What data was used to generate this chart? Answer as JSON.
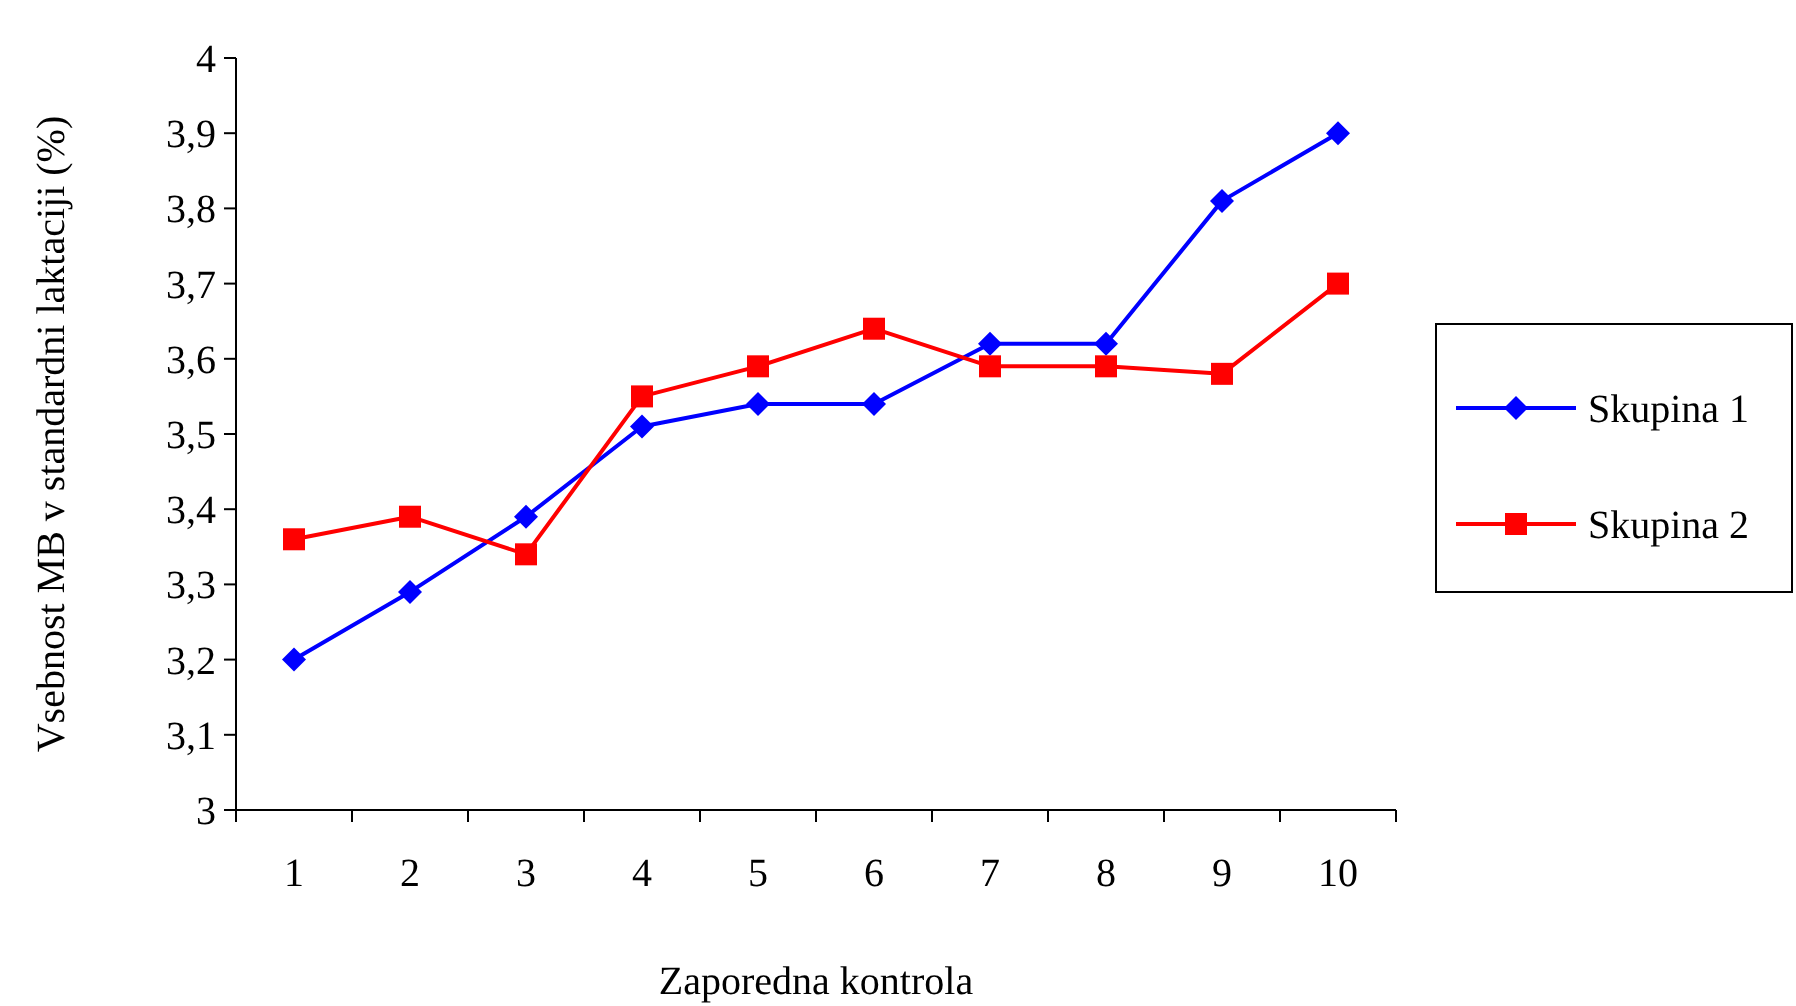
{
  "chart_data": {
    "type": "line",
    "xlabel": "Zaporedna kontrola",
    "ylabel": "Vsebnost MB v standardni laktaciji (%)",
    "categories": [
      "1",
      "2",
      "3",
      "4",
      "5",
      "6",
      "7",
      "8",
      "9",
      "10"
    ],
    "ylim": [
      3,
      4
    ],
    "yticks": [
      {
        "value": 3,
        "label": "3"
      },
      {
        "value": 3.1,
        "label": "3,1"
      },
      {
        "value": 3.2,
        "label": "3,2"
      },
      {
        "value": 3.3,
        "label": "3,3"
      },
      {
        "value": 3.4,
        "label": "3,4"
      },
      {
        "value": 3.5,
        "label": "3,5"
      },
      {
        "value": 3.6,
        "label": "3,6"
      },
      {
        "value": 3.7,
        "label": "3,7"
      },
      {
        "value": 3.8,
        "label": "3,8"
      },
      {
        "value": 3.9,
        "label": "3,9"
      },
      {
        "value": 4,
        "label": "4"
      }
    ],
    "grid": false,
    "legend": "right",
    "line_style": "solid",
    "series": [
      {
        "name": "Skupina 1",
        "color": "#0000ff",
        "marker": "diamond",
        "values": [
          3.2,
          3.29,
          3.39,
          3.51,
          3.54,
          3.54,
          3.62,
          3.62,
          3.81,
          3.9
        ]
      },
      {
        "name": "Skupina 2",
        "color": "#ff0000",
        "marker": "square",
        "values": [
          3.36,
          3.39,
          3.34,
          3.55,
          3.59,
          3.64,
          3.59,
          3.59,
          3.58,
          3.7
        ]
      }
    ]
  }
}
